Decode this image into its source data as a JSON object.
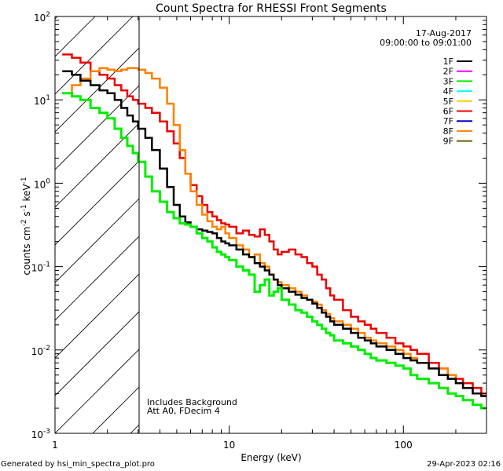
{
  "chart_data": {
    "type": "line",
    "title": "Count Spectra for RHESSI Front Segments",
    "xlabel": "Energy (keV)",
    "ylabel": "counts cm^-2 s^-1 keV^-1",
    "ylabel_parts": {
      "base": "counts cm",
      "e1": "-2",
      "mid1": " s",
      "e2": "-1",
      "mid2": " keV",
      "e3": "-1"
    },
    "xscale": "log",
    "yscale": "log",
    "xlim": [
      1,
      300
    ],
    "ylim": [
      0.001,
      100
    ],
    "x_ticks": [
      {
        "value": 1,
        "label": "1"
      },
      {
        "value": 10,
        "label": "10"
      },
      {
        "value": 100,
        "label": "100"
      }
    ],
    "y_ticks": [
      {
        "value": 0.001,
        "base": "10",
        "exp": "-3"
      },
      {
        "value": 0.01,
        "base": "10",
        "exp": "-2"
      },
      {
        "value": 0.1,
        "base": "10",
        "exp": "-1"
      },
      {
        "value": 1,
        "base": "10",
        "exp": "0"
      },
      {
        "value": 10,
        "base": "10",
        "exp": "1"
      },
      {
        "value": 100,
        "base": "10",
        "exp": "2"
      }
    ],
    "hatched_region": {
      "x_from": 1,
      "x_to": 3
    },
    "date": "17-Aug-2017",
    "time_range": "09:00:00 to 09:01:00",
    "legend": [
      {
        "label": "1F",
        "color": "#000000"
      },
      {
        "label": "2F",
        "color": "#ff00ff"
      },
      {
        "label": "3F",
        "color": "#00ee00"
      },
      {
        "label": "4F",
        "color": "#00ffff"
      },
      {
        "label": "5F",
        "color": "#ffcc00"
      },
      {
        "label": "6F",
        "color": "#ee0000"
      },
      {
        "label": "7F",
        "color": "#0000cc"
      },
      {
        "label": "8F",
        "color": "#ff8000"
      },
      {
        "label": "9F",
        "color": "#666600"
      }
    ],
    "annotations": [
      "Includes Background",
      "Att A0, FDecim 4"
    ],
    "series": [
      {
        "name": "6F",
        "color": "#ee0000",
        "width": 2.5,
        "x": [
          1.1,
          1.25,
          1.4,
          1.6,
          1.8,
          2.0,
          2.2,
          2.4,
          2.6,
          2.8,
          3.0,
          3.3,
          3.6,
          4.0,
          4.4,
          4.8,
          5.2,
          5.6,
          6.0,
          6.5,
          7.0,
          7.5,
          8.0,
          8.5,
          9.0,
          9.5,
          10,
          11,
          12,
          13,
          14,
          15,
          16,
          17,
          18,
          19,
          20,
          22,
          24,
          26,
          28,
          30,
          32,
          34,
          36,
          38,
          40,
          45,
          50,
          55,
          60,
          65,
          70,
          80,
          90,
          100,
          110,
          120,
          140,
          160,
          180,
          200,
          220,
          250,
          280
        ],
        "y": [
          35,
          32,
          28,
          22,
          20,
          18,
          15,
          13,
          11,
          10,
          9.0,
          8.0,
          7.0,
          5.5,
          4.2,
          3.0,
          2.0,
          1.3,
          0.95,
          0.7,
          0.55,
          0.45,
          0.4,
          0.36,
          0.33,
          0.32,
          0.3,
          0.25,
          0.27,
          0.24,
          0.23,
          0.28,
          0.24,
          0.2,
          0.16,
          0.14,
          0.15,
          0.16,
          0.14,
          0.13,
          0.11,
          0.1,
          0.08,
          0.07,
          0.055,
          0.045,
          0.04,
          0.03,
          0.025,
          0.022,
          0.02,
          0.018,
          0.016,
          0.014,
          0.012,
          0.011,
          0.01,
          0.009,
          0.007,
          0.006,
          0.005,
          0.0045,
          0.004,
          0.0035,
          0.003
        ]
      },
      {
        "name": "8F",
        "color": "#ff8000",
        "width": 2.5,
        "x": [
          1.1,
          1.25,
          1.4,
          1.6,
          1.8,
          2.0,
          2.2,
          2.4,
          2.6,
          2.8,
          3.0,
          3.3,
          3.6,
          4.0,
          4.4,
          4.8,
          5.2,
          5.6,
          6.0,
          6.5,
          7.0,
          7.5,
          8.0,
          8.5,
          9.0,
          9.5,
          10,
          11,
          12,
          13,
          14,
          15,
          16,
          17,
          18,
          19,
          20,
          22,
          24,
          26,
          28,
          30,
          32,
          34,
          36,
          38,
          40,
          45,
          50,
          55,
          60,
          65,
          70,
          80,
          90,
          100,
          110,
          120,
          140,
          160,
          180,
          200,
          220,
          250,
          280
        ],
        "y": [
          12,
          15,
          18,
          22,
          24,
          23,
          22,
          23,
          24,
          24,
          23,
          21,
          18,
          14,
          9.0,
          5.0,
          2.5,
          1.3,
          0.8,
          0.55,
          0.42,
          0.35,
          0.3,
          0.28,
          0.3,
          0.25,
          0.22,
          0.18,
          0.16,
          0.13,
          0.14,
          0.11,
          0.1,
          0.08,
          0.07,
          0.065,
          0.06,
          0.055,
          0.05,
          0.045,
          0.04,
          0.038,
          0.035,
          0.03,
          0.027,
          0.024,
          0.022,
          0.02,
          0.018,
          0.016,
          0.014,
          0.013,
          0.012,
          0.011,
          0.01,
          0.009,
          0.008,
          0.007,
          0.006,
          0.006,
          0.005,
          0.004,
          0.0035,
          0.003,
          0.0028
        ]
      },
      {
        "name": "1F",
        "color": "#000000",
        "width": 2.5,
        "x": [
          1.1,
          1.25,
          1.4,
          1.6,
          1.8,
          2.0,
          2.2,
          2.4,
          2.6,
          2.8,
          3.0,
          3.3,
          3.6,
          4.0,
          4.4,
          4.8,
          5.2,
          5.6,
          6.0,
          6.5,
          7.0,
          7.5,
          8.0,
          8.5,
          9.0,
          9.5,
          10,
          11,
          12,
          13,
          14,
          15,
          16,
          17,
          18,
          19,
          20,
          22,
          24,
          26,
          28,
          30,
          32,
          34,
          36,
          38,
          40,
          45,
          50,
          55,
          60,
          65,
          70,
          80,
          90,
          100,
          110,
          120,
          140,
          160,
          180,
          200,
          220,
          250,
          280
        ],
        "y": [
          22,
          20,
          17,
          15,
          13,
          12,
          10,
          8.0,
          6.5,
          5.5,
          4.5,
          3.5,
          2.5,
          1.5,
          0.9,
          0.55,
          0.4,
          0.34,
          0.3,
          0.28,
          0.27,
          0.26,
          0.25,
          0.22,
          0.2,
          0.19,
          0.18,
          0.16,
          0.14,
          0.13,
          0.11,
          0.1,
          0.09,
          0.08,
          0.07,
          0.06,
          0.055,
          0.05,
          0.046,
          0.042,
          0.04,
          0.036,
          0.032,
          0.028,
          0.025,
          0.022,
          0.02,
          0.018,
          0.016,
          0.014,
          0.013,
          0.012,
          0.011,
          0.01,
          0.009,
          0.008,
          0.0075,
          0.007,
          0.006,
          0.005,
          0.0045,
          0.004,
          0.0035,
          0.003,
          0.0028
        ]
      },
      {
        "name": "3F",
        "color": "#00ee00",
        "width": 3,
        "x": [
          1.1,
          1.25,
          1.4,
          1.6,
          1.8,
          2.0,
          2.2,
          2.4,
          2.6,
          2.8,
          3.0,
          3.3,
          3.6,
          4.0,
          4.4,
          4.8,
          5.2,
          5.6,
          6.0,
          6.5,
          7.0,
          7.5,
          8.0,
          8.5,
          9.0,
          9.5,
          10,
          11,
          12,
          13,
          14,
          15,
          16,
          17,
          18,
          19,
          20,
          22,
          24,
          26,
          28,
          30,
          32,
          34,
          36,
          38,
          40,
          45,
          50,
          55,
          60,
          65,
          70,
          80,
          90,
          100,
          110,
          120,
          140,
          160,
          180,
          200,
          220,
          250,
          280
        ],
        "y": [
          12,
          11,
          10,
          8.0,
          7.0,
          6.0,
          4.5,
          3.5,
          2.8,
          2.3,
          1.8,
          1.2,
          0.8,
          0.6,
          0.45,
          0.38,
          0.33,
          0.32,
          0.3,
          0.25,
          0.22,
          0.2,
          0.17,
          0.15,
          0.14,
          0.13,
          0.12,
          0.1,
          0.09,
          0.08,
          0.05,
          0.06,
          0.07,
          0.045,
          0.05,
          0.055,
          0.04,
          0.035,
          0.03,
          0.028,
          0.025,
          0.022,
          0.02,
          0.018,
          0.016,
          0.015,
          0.013,
          0.012,
          0.011,
          0.01,
          0.009,
          0.008,
          0.0075,
          0.007,
          0.0065,
          0.006,
          0.005,
          0.0045,
          0.004,
          0.0035,
          0.003,
          0.0028,
          0.0025,
          0.0022,
          0.002
        ]
      }
    ]
  },
  "footer": {
    "generated": "Generated by hsi_min_spectra_plot.pro",
    "date": "29-Apr-2023 02:16"
  }
}
